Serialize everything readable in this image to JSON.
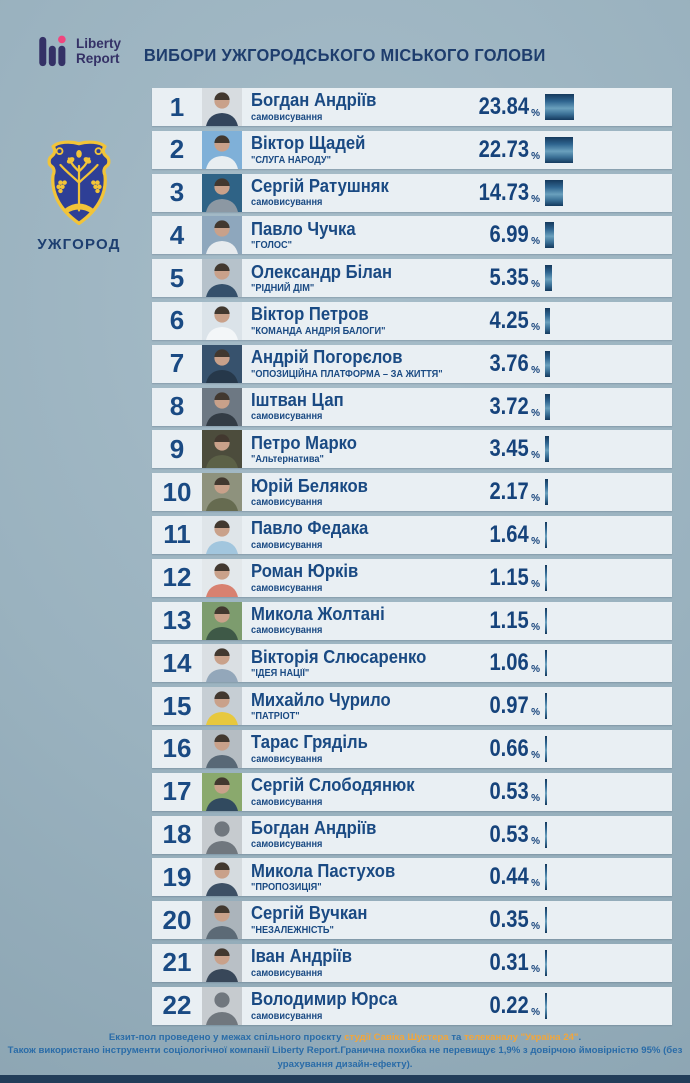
{
  "brand": {
    "line1": "Liberty",
    "line2": "Report"
  },
  "header": {
    "title": "ВИБОРИ УЖГОРОДСЬКОГО МІСЬКОГО ГОЛОВИ"
  },
  "city": {
    "label": "УЖГОРОД"
  },
  "labels": {
    "percent_sign": "%"
  },
  "colors": {
    "navy_text": "#1a4a83",
    "row_bg": "#e9eff3",
    "page_bg": "#9ab2bf",
    "bar_dark": "#15395c",
    "bar_light": "#6aa0bd",
    "brand_indigo": "#343166",
    "brand_pink": "#f0457e",
    "crest_blue": "#2e3f96",
    "crest_gold": "#f2c438",
    "footer_blue": "#2a6ca8",
    "footer_orange": "#f2a63b",
    "skin_tone": "#c9a18a",
    "hair_tone": "#42382f"
  },
  "chart_data": {
    "type": "bar",
    "orientation": "horizontal",
    "title": "ВИБОРИ УЖГОРОДСЬКОГО МІСЬКОГО ГОЛОВИ",
    "unit": "%",
    "xlim": [
      0,
      25
    ],
    "grid": false,
    "legend": false,
    "categories": [
      "Богдан Андріїв",
      "Віктор Щадей",
      "Сергій Ратушняк",
      "Павло Чучка",
      "Олександр Білан",
      "Віктор Петров",
      "Андрій Погорєлов",
      "Іштван Цап",
      "Петро Марко",
      "Юрій Беляков",
      "Павло Федака",
      "Роман Юрків",
      "Микола Жолтані",
      "Вікторія Слюсаренко",
      "Михайло Чурило",
      "Тарас Гряділь",
      "Сергій Слободянюк",
      "Богдан Андріїв",
      "Микола Пастухов",
      "Сергій Вучкан",
      "Іван Андріїв",
      "Володимир Юрса"
    ],
    "values": [
      23.84,
      22.73,
      14.73,
      6.99,
      5.35,
      4.25,
      3.76,
      3.72,
      3.45,
      2.17,
      1.64,
      1.15,
      1.15,
      1.06,
      0.97,
      0.66,
      0.53,
      0.53,
      0.44,
      0.35,
      0.31,
      0.22
    ],
    "annotations": [
      "самовисування",
      "\"СЛУГА НАРОДУ\"",
      "самовисування",
      "\"ГОЛОС\"",
      "\"РІДНИЙ ДІМ\"",
      "\"КОМАНДА АНДРІЯ БАЛОГИ\"",
      "\"ОПОЗИЦІЙНА ПЛАТФОРМА – ЗА ЖИТТЯ\"",
      "самовисування",
      "\"Альтернатива\"",
      "самовисування",
      "самовисування",
      "самовисування",
      "самовисування",
      "\"ІДЕЯ НАЦІЇ\"",
      "\"ПАТРІОТ\"",
      "самовисування",
      "самовисування",
      "самовисування",
      "\"ПРОПОЗИЦІЯ\"",
      "\"НЕЗАЛЕЖНІСТЬ\"",
      "самовисування",
      "самовисування"
    ]
  },
  "rows": [
    {
      "rank": "1",
      "name": "Богдан Андріїв",
      "party": "самовисування",
      "percent": "23.84",
      "photo": {
        "bg": "#d7dce0",
        "body": "#33455c",
        "placeholder": false
      }
    },
    {
      "rank": "2",
      "name": "Віктор Щадей",
      "party": "\"СЛУГА НАРОДУ\"",
      "percent": "22.73",
      "photo": {
        "bg": "#7fb0d8",
        "body": "#e9eef1",
        "placeholder": false
      }
    },
    {
      "rank": "3",
      "name": "Сергій Ратушняк",
      "party": "самовисування",
      "percent": "14.73",
      "photo": {
        "bg": "#2f6386",
        "body": "#8c98a3",
        "placeholder": false
      }
    },
    {
      "rank": "4",
      "name": "Павло Чучка",
      "party": "\"ГОЛОС\"",
      "percent": "6.99",
      "photo": {
        "bg": "#8ea7bd",
        "body": "#e7ebee",
        "placeholder": false
      }
    },
    {
      "rank": "5",
      "name": "Олександр Білан",
      "party": "\"РІДНИЙ ДІМ\"",
      "percent": "5.35",
      "photo": {
        "bg": "#b6c2cb",
        "body": "#35506b",
        "placeholder": false
      }
    },
    {
      "rank": "6",
      "name": "Віктор Петров",
      "party": "\"КОМАНДА АНДРІЯ БАЛОГИ\"",
      "percent": "4.25",
      "photo": {
        "bg": "#dbe3e9",
        "body": "#f3f6f8",
        "placeholder": false
      }
    },
    {
      "rank": "7",
      "name": "Андрій Погорєлов",
      "party": "\"ОПОЗИЦІЙНА ПЛАТФОРМА – ЗА ЖИТТЯ\"",
      "percent": "3.76",
      "photo": {
        "bg": "#37526d",
        "body": "#26384a",
        "placeholder": false
      }
    },
    {
      "rank": "8",
      "name": "Іштван Цап",
      "party": "самовисування",
      "percent": "3.72",
      "photo": {
        "bg": "#6d7883",
        "body": "#333c45",
        "placeholder": false
      }
    },
    {
      "rank": "9",
      "name": "Петро Марко",
      "party": "\"Альтернатива\"",
      "percent": "3.45",
      "photo": {
        "bg": "#4c4c3c",
        "body": "#5c6147",
        "placeholder": false
      }
    },
    {
      "rank": "10",
      "name": "Юрій Беляков",
      "party": "самовисування",
      "percent": "2.17",
      "photo": {
        "bg": "#8e927d",
        "body": "#666b50",
        "placeholder": false
      }
    },
    {
      "rank": "11",
      "name": "Павло Федака",
      "party": "самовисування",
      "percent": "1.64",
      "photo": {
        "bg": "#dfe5e9",
        "body": "#a2c6de",
        "placeholder": false
      }
    },
    {
      "rank": "12",
      "name": "Роман Юрків",
      "party": "самовисування",
      "percent": "1.15",
      "photo": {
        "bg": "#e3e8eb",
        "body": "#d88170",
        "placeholder": false
      }
    },
    {
      "rank": "13",
      "name": "Микола Жолтані",
      "party": "самовисування",
      "percent": "1.15",
      "photo": {
        "bg": "#7d9c6e",
        "body": "#3e5947",
        "placeholder": false
      }
    },
    {
      "rank": "14",
      "name": "Вікторія Слюсаренко",
      "party": "\"ІДЕЯ НАЦІЇ\"",
      "percent": "1.06",
      "photo": {
        "bg": "#dadfe3",
        "body": "#93a7ba",
        "placeholder": false
      }
    },
    {
      "rank": "15",
      "name": "Михайло Чурило",
      "party": "\"ПАТРІОТ\"",
      "percent": "0.97",
      "photo": {
        "bg": "#c6ced4",
        "body": "#e7c83e",
        "placeholder": false
      }
    },
    {
      "rank": "16",
      "name": "Тарас Гряділь",
      "party": "самовисування",
      "percent": "0.66",
      "photo": {
        "bg": "#b5bdc3",
        "body": "#586876",
        "placeholder": false
      }
    },
    {
      "rank": "17",
      "name": "Сергій Слободянюк",
      "party": "самовисування",
      "percent": "0.53",
      "photo": {
        "bg": "#8aa96d",
        "body": "#314a5f",
        "placeholder": false
      }
    },
    {
      "rank": "18",
      "name": "Богдан Андріїв",
      "party": "самовисування",
      "percent": "0.53",
      "photo": {
        "bg": "#c6cbcf",
        "body": "#70777e",
        "placeholder": true
      }
    },
    {
      "rank": "19",
      "name": "Микола Пастухов",
      "party": "\"ПРОПОЗИЦІЯ\"",
      "percent": "0.44",
      "photo": {
        "bg": "#d5dbdf",
        "body": "#3d5065",
        "placeholder": false
      }
    },
    {
      "rank": "20",
      "name": "Сергій Вучкан",
      "party": "\"НЕЗАЛЕЖНІСТЬ\"",
      "percent": "0.35",
      "photo": {
        "bg": "#abb4bb",
        "body": "#5c6a76",
        "placeholder": false
      }
    },
    {
      "rank": "21",
      "name": "Іван Андріїв",
      "party": "самовисування",
      "percent": "0.31",
      "photo": {
        "bg": "#b9c0c6",
        "body": "#384759",
        "placeholder": false
      }
    },
    {
      "rank": "22",
      "name": "Володимир Юрса",
      "party": "самовисування",
      "percent": "0.22",
      "photo": {
        "bg": "#c6cbcf",
        "body": "#70777e",
        "placeholder": true
      }
    }
  ],
  "footer": {
    "line1_parts": [
      {
        "t": "Екзит-пол проведено у межах спільного проєкту ",
        "hl": false
      },
      {
        "t": "студії Савіка Шустера",
        "hl": true
      },
      {
        "t": " та ",
        "hl": false
      },
      {
        "t": "телеканалу \"Україна 24\"",
        "hl": true
      },
      {
        "t": ".",
        "hl": false
      }
    ],
    "line2": "Також використано інструменти соціологічної компанії Liberty Report.Гранична похибка не перевищує 1,9% з довірчою ймовірністю 95% (без урахування дизайн-ефекту)."
  }
}
